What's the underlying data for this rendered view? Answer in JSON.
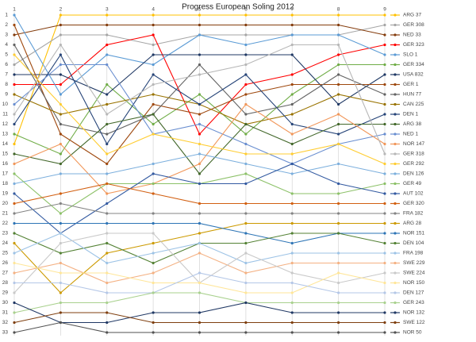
{
  "chart_data": {
    "type": "line",
    "title": "Progress European Soling 2012",
    "x": [
      1,
      2,
      3,
      4,
      5,
      6,
      7,
      8,
      9
    ],
    "xlim": [
      1,
      9
    ],
    "xticks": [
      1,
      2,
      3,
      4,
      5,
      6,
      7,
      8,
      9
    ],
    "ylim": [
      1,
      33
    ],
    "y_reversed": true,
    "yticks": [
      1,
      2,
      3,
      4,
      5,
      6,
      7,
      8,
      9,
      10,
      11,
      12,
      13,
      14,
      15,
      16,
      17,
      18,
      19,
      20,
      21,
      22,
      23,
      24,
      25,
      26,
      27,
      28,
      29,
      30,
      31,
      32,
      33
    ],
    "grid": true,
    "legend": "right",
    "series": [
      {
        "name": "ARG 37",
        "color": "#ffc000",
        "values": [
          14,
          1,
          1,
          1,
          1,
          1,
          1,
          1,
          1
        ]
      },
      {
        "name": "GER 308",
        "color": "#a5a5a5",
        "values": [
          6,
          3,
          3,
          4,
          3,
          3,
          3,
          3,
          2
        ]
      },
      {
        "name": "NED 33",
        "color": "#843c0c",
        "values": [
          3,
          2,
          2,
          2,
          2,
          2,
          2,
          2,
          3
        ]
      },
      {
        "name": "GER 323",
        "color": "#ff0000",
        "values": [
          8,
          8,
          4,
          3,
          13,
          8,
          7,
          5,
          4
        ]
      },
      {
        "name": "SLO 1",
        "color": "#5b9bd5",
        "values": [
          1,
          9,
          5,
          6,
          3,
          4,
          3,
          3,
          5
        ]
      },
      {
        "name": "GER 334",
        "color": "#70ad47",
        "values": [
          13,
          15,
          8,
          12,
          9,
          13,
          9,
          6,
          6
        ]
      },
      {
        "name": "USA 832",
        "color": "#1f3864",
        "values": [
          7,
          7,
          9,
          5,
          5,
          5,
          5,
          10,
          7
        ]
      },
      {
        "name": "GER 1",
        "color": "#9e480e",
        "values": [
          2,
          13,
          16,
          10,
          11,
          9,
          8,
          8,
          8
        ]
      },
      {
        "name": "HUN 77",
        "color": "#636363",
        "values": [
          4,
          12,
          13,
          11,
          6,
          11,
          10,
          7,
          9
        ]
      },
      {
        "name": "CAN 225",
        "color": "#997300",
        "values": [
          9,
          11,
          10,
          9,
          10,
          12,
          11,
          9,
          10
        ]
      },
      {
        "name": "DEN 1",
        "color": "#264478",
        "values": [
          12,
          5,
          14,
          7,
          10,
          7,
          12,
          13,
          11
        ]
      },
      {
        "name": "ARG 38",
        "color": "#43682b",
        "values": [
          15,
          16,
          12,
          11,
          17,
          12,
          14,
          12,
          12
        ]
      },
      {
        "name": "NED 1",
        "color": "#698ed0",
        "values": [
          10,
          6,
          6,
          13,
          12,
          14,
          16,
          14,
          13
        ]
      },
      {
        "name": "NOR 147",
        "color": "#f1975a",
        "values": [
          16,
          14,
          19,
          18,
          16,
          10,
          13,
          11,
          14
        ]
      },
      {
        "name": "GER 318",
        "color": "#b7b7b7",
        "values": [
          11,
          4,
          11,
          8,
          7,
          6,
          4,
          4,
          15
        ]
      },
      {
        "name": "GER 292",
        "color": "#ffcd33",
        "values": [
          5,
          10,
          15,
          13,
          14,
          15,
          15,
          14,
          16
        ]
      },
      {
        "name": "DEN 126",
        "color": "#7cafdd",
        "values": [
          18,
          17,
          17,
          16,
          15,
          16,
          17,
          16,
          17
        ]
      },
      {
        "name": "GER 49",
        "color": "#8cc168",
        "values": [
          17,
          21,
          18,
          18,
          18,
          17,
          19,
          19,
          18
        ]
      },
      {
        "name": "AUT 102",
        "color": "#335aa1",
        "values": [
          19,
          23,
          20,
          17,
          18,
          18,
          16,
          18,
          19
        ]
      },
      {
        "name": "GER 320",
        "color": "#d26012",
        "values": [
          20,
          19,
          18,
          19,
          20,
          20,
          20,
          20,
          20
        ]
      },
      {
        "name": "FRA 182",
        "color": "#848484",
        "values": [
          21,
          20,
          21,
          21,
          21,
          21,
          21,
          21,
          21
        ]
      },
      {
        "name": "ARG 28",
        "color": "#cc9a00",
        "values": [
          24,
          29,
          25,
          24,
          23,
          22,
          22,
          22,
          22
        ]
      },
      {
        "name": "NOR 151",
        "color": "#2e75b6",
        "values": [
          22,
          22,
          22,
          22,
          22,
          23,
          24,
          23,
          23
        ]
      },
      {
        "name": "DEN 104",
        "color": "#548235",
        "values": [
          23,
          25,
          24,
          26,
          24,
          24,
          23,
          23,
          24
        ]
      },
      {
        "name": "FRA 198",
        "color": "#9dc3e6",
        "values": [
          25,
          23,
          26,
          25,
          24,
          26,
          25,
          25,
          25
        ]
      },
      {
        "name": "SWE 229",
        "color": "#f4b183",
        "values": [
          27,
          26,
          28,
          27,
          25,
          27,
          26,
          26,
          26
        ]
      },
      {
        "name": "SWE 224",
        "color": "#c9c9c9",
        "values": [
          29,
          24,
          23,
          23,
          28,
          25,
          27,
          28,
          27
        ]
      },
      {
        "name": "NOR 150",
        "color": "#ffe699",
        "values": [
          26,
          27,
          27,
          28,
          28,
          29,
          29,
          27,
          28
        ]
      },
      {
        "name": "DEN 127",
        "color": "#b4c7e7",
        "values": [
          28,
          28,
          29,
          29,
          27,
          28,
          28,
          29,
          29
        ]
      },
      {
        "name": "GER 243",
        "color": "#a9d18e",
        "values": [
          31,
          30,
          30,
          29,
          29,
          30,
          30,
          30,
          30
        ]
      },
      {
        "name": "NOR 132",
        "color": "#203864",
        "values": [
          30,
          32,
          32,
          31,
          31,
          30,
          31,
          31,
          31
        ]
      },
      {
        "name": "SWE 122",
        "color": "#7f3f0f",
        "values": [
          32,
          31,
          31,
          32,
          32,
          32,
          32,
          32,
          32
        ]
      },
      {
        "name": "NOR 50",
        "color": "#525252",
        "values": [
          33,
          32,
          33,
          33,
          33,
          33,
          33,
          33,
          33
        ]
      }
    ]
  }
}
